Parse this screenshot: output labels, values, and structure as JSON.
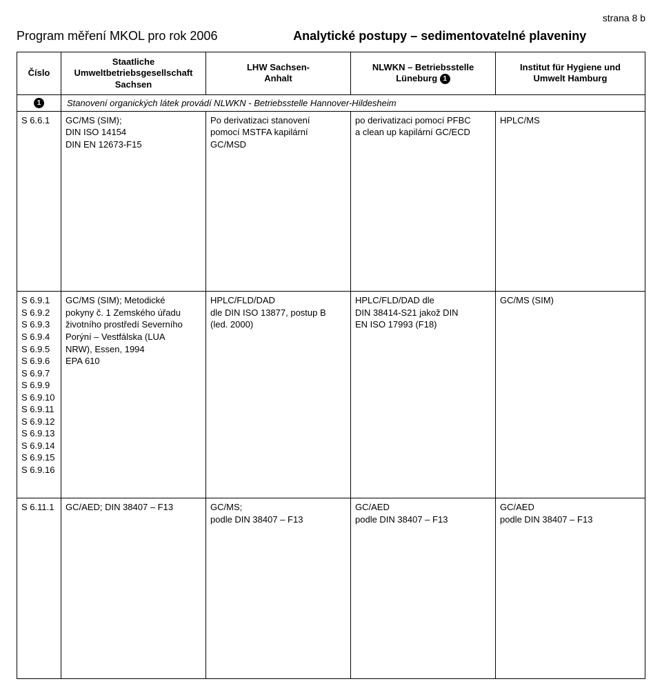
{
  "page_index": "strana 8 b",
  "program_title": "Program měření MKOL pro rok 2006",
  "subtitle": "Analytické postupy – sedimentovatelné plaveniny",
  "columns": {
    "c1": "Číslo",
    "c2": "Staatliche\nUmweltbetriebsgesellschaft\nSachsen",
    "c3": "LHW Sachsen-\nAnhalt",
    "c4_prefix": "NLWKN – Betriebsstelle",
    "c4_suffix": "Lüneburg",
    "c5": "Institut für Hygiene und\nUmwelt Hamburg"
  },
  "note": "Stanovení organických látek provádí NLWKN - Betriebsstelle Hannover-Hildesheim",
  "row1": {
    "code": "S 6.6.1",
    "c2": "GC/MS (SIM);\nDIN ISO 14154\nDIN EN 12673-F15",
    "c3": "Po derivatizaci stanovení\npomocí MSTFA kapilární\nGC/MSD",
    "c4": "po derivatizaci pomocí PFBC\na clean up kapilární GC/ECD",
    "c5": "HPLC/MS"
  },
  "row2": {
    "codes": "S 6.9.1\nS 6.9.2\nS 6.9.3\nS 6.9.4\nS 6.9.5\nS 6.9.6\nS 6.9.7\nS 6.9.9\nS 6.9.10\nS 6.9.11\nS 6.9.12\nS 6.9.13\nS 6.9.14\nS 6.9.15\nS 6.9.16",
    "c2": "GC/MS (SIM); Metodické\npokyny č. 1 Zemského úřadu\nživotního prostředí Severního\nPorýní – Vestfálska (LUA\nNRW), Essen, 1994\nEPA 610",
    "c3": "HPLC/FLD/DAD\ndle DIN ISO 13877, postup B\n(led. 2000)",
    "c4": "HPLC/FLD/DAD dle\nDIN 38414-S21 jakož DIN\nEN ISO 17993 (F18)",
    "c5": "GC/MS (SIM)"
  },
  "row3": {
    "code": "S 6.11.1",
    "c2": "GC/AED; DIN 38407 – F13",
    "c3": "GC/MS;\npodle DIN 38407 – F13",
    "c4": "GC/AED\npodle DIN 38407 – F13",
    "c5": "GC/AED\npodle DIN 38407 – F13"
  }
}
